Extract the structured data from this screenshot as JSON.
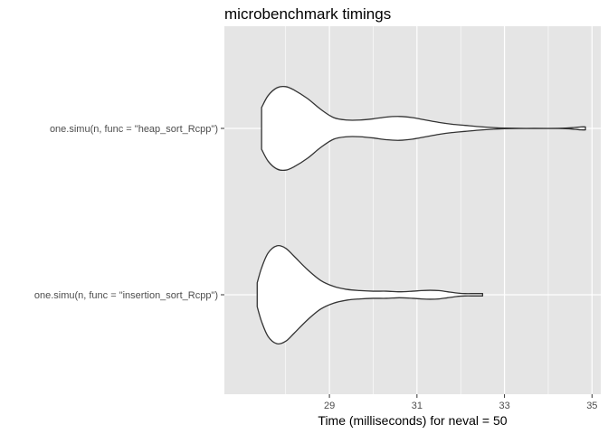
{
  "chart_data": {
    "type": "violin",
    "title": "microbenchmark timings",
    "xlabel": "Time (milliseconds) for neval = 50",
    "ylabel": "",
    "xlim": [
      26.6,
      35.2
    ],
    "x_ticks": [
      29,
      31,
      33,
      35
    ],
    "x_minor_ticks": [
      28,
      30,
      32,
      34
    ],
    "orientation": "horizontal",
    "grid": true,
    "panel_background": "#e5e5e5",
    "grid_color": "#ffffff",
    "violin_fill": "#ffffff",
    "violin_stroke": "#333333",
    "categories": [
      "one.simu(n, func = \"heap_sort_Rcpp\")",
      "one.simu(n, func = \"insertion_sort_Rcpp\")"
    ],
    "series": [
      {
        "category": "one.simu(n, func = \"heap_sort_Rcpp\")",
        "min": 27.45,
        "max": 34.85,
        "density": [
          [
            27.45,
            0.35
          ],
          [
            27.6,
            0.55
          ],
          [
            27.8,
            0.68
          ],
          [
            28.0,
            0.7
          ],
          [
            28.2,
            0.64
          ],
          [
            28.5,
            0.5
          ],
          [
            28.8,
            0.32
          ],
          [
            29.1,
            0.18
          ],
          [
            29.4,
            0.14
          ],
          [
            29.7,
            0.14
          ],
          [
            30.0,
            0.16
          ],
          [
            30.3,
            0.19
          ],
          [
            30.6,
            0.2
          ],
          [
            30.9,
            0.18
          ],
          [
            31.2,
            0.14
          ],
          [
            31.5,
            0.1
          ],
          [
            31.8,
            0.07
          ],
          [
            32.1,
            0.05
          ],
          [
            32.4,
            0.03
          ],
          [
            32.7,
            0.015
          ],
          [
            33.0,
            0.005
          ],
          [
            33.5,
            0.0
          ],
          [
            34.0,
            0.0
          ],
          [
            34.4,
            0.005
          ],
          [
            34.6,
            0.015
          ],
          [
            34.75,
            0.025
          ],
          [
            34.85,
            0.025
          ]
        ]
      },
      {
        "category": "one.simu(n, func = \"insertion_sort_Rcpp\")",
        "min": 27.35,
        "max": 32.5,
        "density": [
          [
            27.35,
            0.2
          ],
          [
            27.45,
            0.45
          ],
          [
            27.6,
            0.7
          ],
          [
            27.8,
            0.82
          ],
          [
            28.0,
            0.78
          ],
          [
            28.2,
            0.64
          ],
          [
            28.5,
            0.42
          ],
          [
            28.8,
            0.24
          ],
          [
            29.1,
            0.14
          ],
          [
            29.4,
            0.09
          ],
          [
            29.7,
            0.07
          ],
          [
            30.0,
            0.06
          ],
          [
            30.3,
            0.06
          ],
          [
            30.6,
            0.05
          ],
          [
            30.9,
            0.06
          ],
          [
            31.1,
            0.07
          ],
          [
            31.3,
            0.075
          ],
          [
            31.5,
            0.07
          ],
          [
            31.7,
            0.05
          ],
          [
            31.9,
            0.03
          ],
          [
            32.1,
            0.02
          ],
          [
            32.3,
            0.02
          ],
          [
            32.5,
            0.02
          ]
        ]
      }
    ]
  }
}
